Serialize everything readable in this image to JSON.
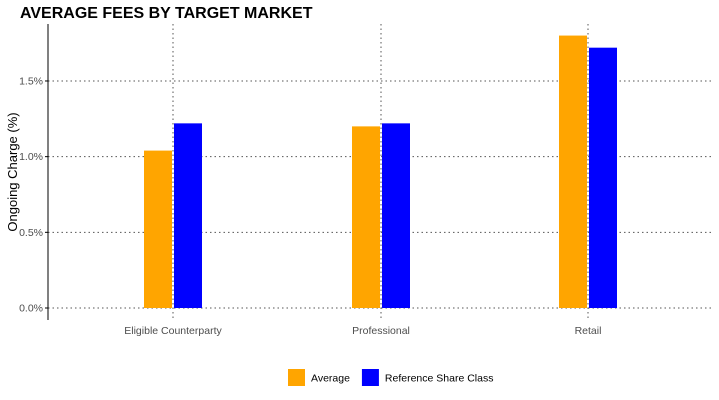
{
  "chart_data": {
    "type": "bar",
    "title": "AVERAGE FEES BY TARGET MARKET",
    "xlabel": "",
    "ylabel": "Ongoing Charge (%)",
    "categories": [
      "Eligible Counterparty",
      "Professional",
      "Retail"
    ],
    "series": [
      {
        "name": "Average",
        "color": "#FFA500",
        "values": [
          1.04,
          1.2,
          1.8
        ]
      },
      {
        "name": "Reference Share Class",
        "color": "#0000FF",
        "values": [
          1.22,
          1.22,
          1.72
        ]
      }
    ],
    "ylim": [
      0,
      1.85
    ],
    "yticks": [
      0,
      0.5,
      1.0,
      1.5
    ],
    "ytick_labels": [
      "0.0%",
      "0.5%",
      "1.0%",
      "1.5%"
    ],
    "grid": true,
    "legend_position": "bottom"
  }
}
